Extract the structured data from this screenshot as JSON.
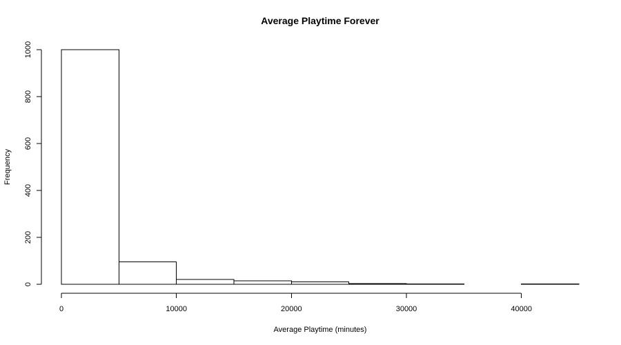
{
  "chart_data": {
    "type": "bar",
    "title": "Average Playtime Forever",
    "xlabel": "Average Playtime (minutes)",
    "ylabel": "Frequency",
    "bins": [
      {
        "start": 0,
        "end": 5000,
        "count": 1000
      },
      {
        "start": 5000,
        "end": 10000,
        "count": 95
      },
      {
        "start": 10000,
        "end": 15000,
        "count": 20
      },
      {
        "start": 15000,
        "end": 20000,
        "count": 14
      },
      {
        "start": 20000,
        "end": 25000,
        "count": 11
      },
      {
        "start": 25000,
        "end": 30000,
        "count": 3
      },
      {
        "start": 30000,
        "end": 35000,
        "count": 1
      },
      {
        "start": 35000,
        "end": 40000,
        "count": 0
      },
      {
        "start": 40000,
        "end": 45000,
        "count": 1
      }
    ],
    "xlim": [
      0,
      45000
    ],
    "ylim": [
      0,
      1000
    ],
    "xticks": [
      0,
      10000,
      20000,
      30000,
      40000
    ],
    "xtick_labels": [
      "0",
      "10000",
      "20000",
      "30000",
      "40000"
    ],
    "yticks": [
      0,
      200,
      400,
      600,
      800,
      1000
    ],
    "ytick_labels": [
      "0",
      "200",
      "400",
      "600",
      "800",
      "1000"
    ],
    "grid": false,
    "legend": "none"
  }
}
